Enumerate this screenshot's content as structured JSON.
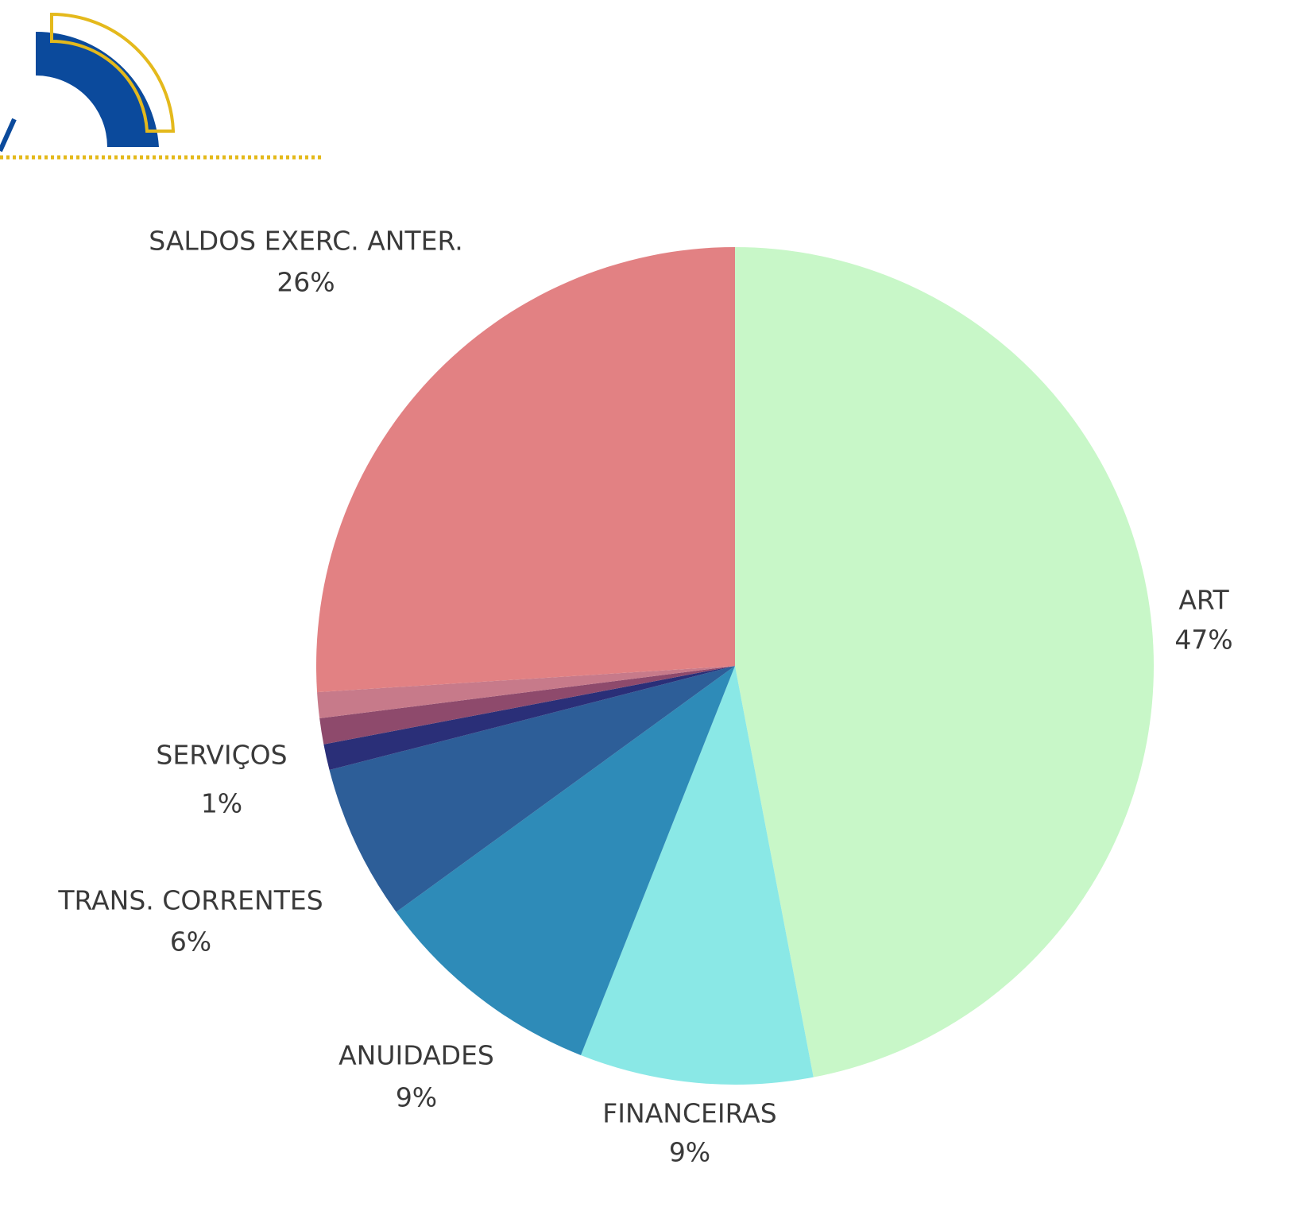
{
  "chart_data": {
    "type": "pie",
    "categories": [
      "ART",
      "FINANCEIRAS",
      "ANUIDADES",
      "TRANS. CORRENTES",
      "SERVIÇOS",
      null,
      null,
      "SALDOS EXERC. ANTER."
    ],
    "values": [
      47,
      9,
      9,
      6,
      1,
      1,
      1,
      26
    ],
    "value_labels": [
      "47%",
      "9%",
      "9%",
      "6%",
      "1%",
      null,
      null,
      "26%"
    ],
    "colors": [
      "#c8f7c8",
      "#8ae8e6",
      "#2e8bb8",
      "#2d5e98",
      "#2a2f78",
      "#8e4a6c",
      "#c77a8a",
      "#e28183"
    ]
  }
}
